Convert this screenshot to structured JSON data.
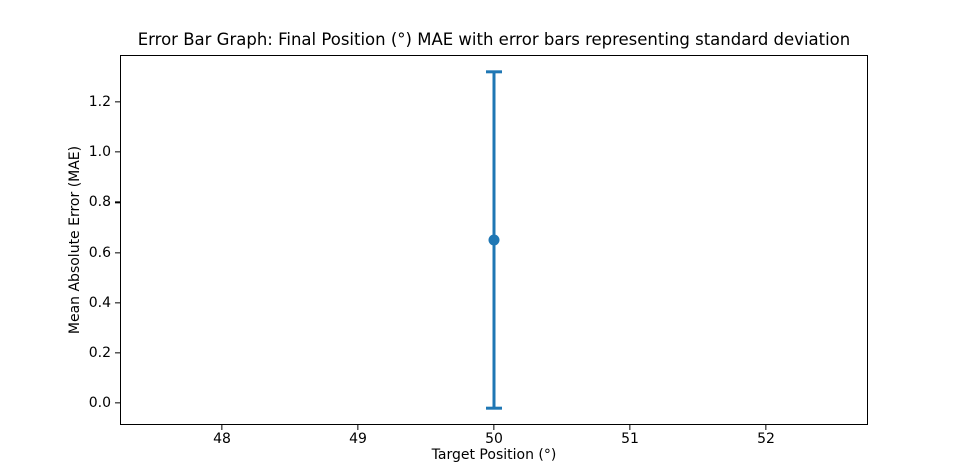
{
  "figure": {
    "background": "#ffffff",
    "axis_color": "#000000"
  },
  "chart_data": {
    "type": "scatter",
    "variant": "errorbar",
    "title": "Error Bar Graph: Final Position (°) MAE with error bars representing standard deviation",
    "xlabel": "Target Position (°)",
    "ylabel": "Mean Absolute Error (MAE)",
    "x_ticks": [
      "48",
      "49",
      "50",
      "51",
      "52"
    ],
    "y_ticks": [
      "0.0",
      "0.2",
      "0.4",
      "0.6",
      "0.8",
      "1.0",
      "1.2"
    ],
    "xlim": [
      47.25,
      52.75
    ],
    "ylim": [
      -0.087,
      1.387
    ],
    "grid": false,
    "legend_position": "none",
    "error_bars_represent": "standard deviation",
    "series": [
      {
        "marker": "circle",
        "color": "#1f77b4",
        "points": [
          {
            "x": 50,
            "y": 0.65,
            "yerr": 0.67
          }
        ]
      }
    ]
  }
}
